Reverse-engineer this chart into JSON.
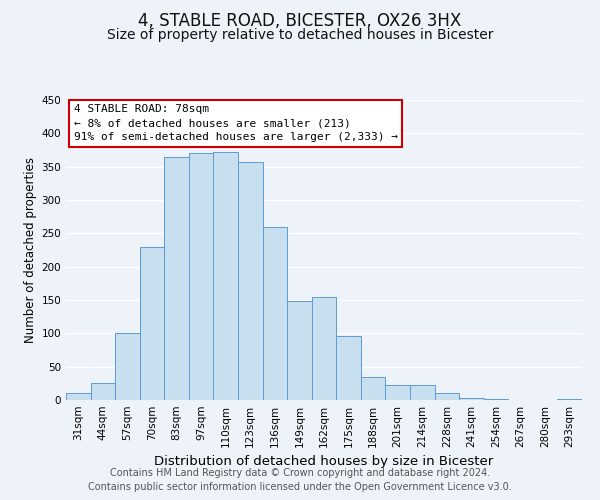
{
  "title": "4, STABLE ROAD, BICESTER, OX26 3HX",
  "subtitle": "Size of property relative to detached houses in Bicester",
  "xlabel": "Distribution of detached houses by size in Bicester",
  "ylabel": "Number of detached properties",
  "categories": [
    "31sqm",
    "44sqm",
    "57sqm",
    "70sqm",
    "83sqm",
    "97sqm",
    "110sqm",
    "123sqm",
    "136sqm",
    "149sqm",
    "162sqm",
    "175sqm",
    "188sqm",
    "201sqm",
    "214sqm",
    "228sqm",
    "241sqm",
    "254sqm",
    "267sqm",
    "280sqm",
    "293sqm"
  ],
  "values": [
    10,
    25,
    100,
    230,
    365,
    370,
    372,
    357,
    260,
    148,
    155,
    96,
    35,
    22,
    22,
    10,
    3,
    1,
    0,
    0,
    1
  ],
  "bar_color": "#c8dff0",
  "bar_edge_color": "#5b9bd5",
  "ylim": [
    0,
    450
  ],
  "yticks": [
    0,
    50,
    100,
    150,
    200,
    250,
    300,
    350,
    400,
    450
  ],
  "annotation_title": "4 STABLE ROAD: 78sqm",
  "annotation_line1": "← 8% of detached houses are smaller (213)",
  "annotation_line2": "91% of semi-detached houses are larger (2,333) →",
  "annotation_box_color": "#ffffff",
  "annotation_box_edge_color": "#cc0000",
  "footer1": "Contains HM Land Registry data © Crown copyright and database right 2024.",
  "footer2": "Contains public sector information licensed under the Open Government Licence v3.0.",
  "background_color": "#eef2f9",
  "plot_background_color": "#eef2f9",
  "grid_color": "#ffffff",
  "title_fontsize": 12,
  "subtitle_fontsize": 10,
  "xlabel_fontsize": 9.5,
  "ylabel_fontsize": 8.5,
  "tick_fontsize": 7.5,
  "footer_fontsize": 7,
  "annotation_fontsize": 8
}
